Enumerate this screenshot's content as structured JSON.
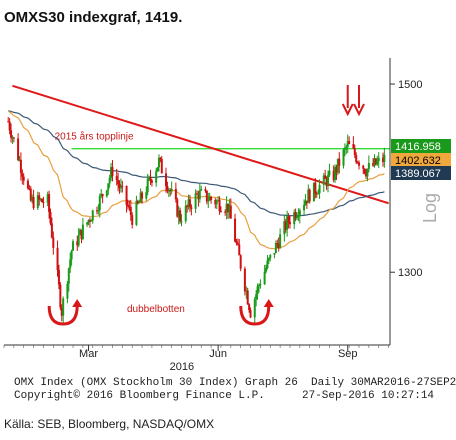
{
  "headline": "OMXS30 indexgraf, 1419.",
  "chart_data": {
    "type": "candlestick",
    "y_scale": "log",
    "ylim": [
      1230,
      1530
    ],
    "y_ticks": [
      1300,
      1500
    ],
    "y_tick_labels": [
      "1300",
      "1500"
    ],
    "ylabel": "Log",
    "x_date_range": [
      "2016-03-30",
      "2016-09-27"
    ],
    "x_ticks": [
      {
        "date": "2016-03-01",
        "label": "Mar"
      },
      {
        "date": "2016-06-01",
        "label": "Jun"
      },
      {
        "date": "2016-09-01",
        "label": "Sep"
      }
    ],
    "x_year_label": {
      "date": "2016-04-15",
      "label": "2016"
    },
    "colors": {
      "up": "#1a9a1a",
      "down": "#d01010",
      "ma_fast": "#e8a040",
      "ma_slow": "#3a5878",
      "trend": "#e01818",
      "level": "#33dd33"
    },
    "price_tags": [
      {
        "value": 1416.958,
        "label": "1416.958",
        "bg": "#1a9a1a",
        "fg": "#ffffff"
      },
      {
        "value": 1402.632,
        "label": "1402.632",
        "bg": "#f0a83c",
        "fg": "#000000"
      },
      {
        "value": 1389.067,
        "label": "1389.067",
        "bg": "#1f3a52",
        "fg": "#ffffff"
      }
    ],
    "horizontal_line": {
      "value": 1428,
      "start_date": "2016-02-18",
      "label": "2015 års topplinje"
    },
    "trendline": {
      "start": {
        "date": "2016-01-07",
        "value": 1498
      },
      "end": {
        "date": "2016-09-30",
        "value": 1370
      }
    },
    "annotations": {
      "double_bottom_label": "dubbelbotten",
      "double_bottom_dates": [
        "2016-02-12",
        "2016-06-27"
      ],
      "arrow_dates": [
        "2016-09-01",
        "2016-09-09"
      ]
    },
    "candles": [],
    "ma_fast": [],
    "ma_slow": []
  },
  "footer": {
    "line1": "OMX Index (OMX Stockholm 30 Index) Graph 26  Daily 30MAR2016-27SEP2016",
    "line2_left": "Copyright© 2016 Bloomberg Finance L.P.",
    "line2_right": "27-Sep-2016 10:27:14"
  },
  "source": "Källa: SEB, Bloomberg, NASDAQ/OMX"
}
